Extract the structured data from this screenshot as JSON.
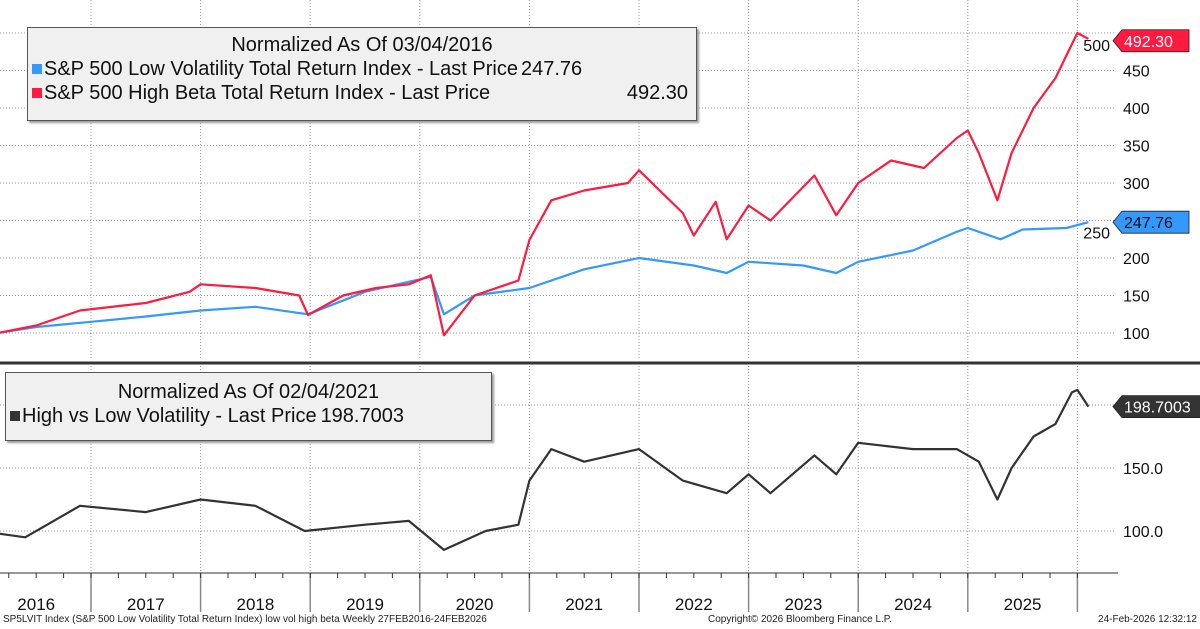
{
  "chart_data": [
    {
      "type": "line",
      "title": "Normalized As Of 03/04/2016",
      "ylim": [
        75,
        515
      ],
      "yticks": [
        100,
        150,
        200,
        250,
        300,
        350,
        400,
        450,
        500
      ],
      "series": [
        {
          "name": "S&P 500 Low Volatility Total Return Index - Last Price",
          "last": "247.76",
          "color": "#3399ff",
          "x": [
            2016.15,
            2016.5,
            2017.0,
            2017.5,
            2018.0,
            2018.5,
            2018.98,
            2019.5,
            2020.1,
            2020.22,
            2020.5,
            2021.0,
            2021.5,
            2022.0,
            2022.5,
            2022.8,
            2023.0,
            2023.5,
            2023.8,
            2024.0,
            2024.5,
            2024.9,
            2025.0,
            2025.3,
            2025.5,
            2025.9,
            2026.1
          ],
          "y": [
            100,
            108,
            115,
            122,
            130,
            135,
            125,
            155,
            175,
            125,
            150,
            160,
            185,
            200,
            190,
            180,
            195,
            190,
            180,
            195,
            210,
            235,
            240,
            225,
            238,
            240,
            247.76
          ]
        },
        {
          "name": "S&P 500 High Beta Total Return Index - Last Price",
          "last": "492.30",
          "color": "#ff1a40",
          "x": [
            2016.15,
            2016.5,
            2016.9,
            2017.5,
            2017.9,
            2018.0,
            2018.5,
            2018.9,
            2018.98,
            2019.3,
            2019.6,
            2019.9,
            2020.1,
            2020.22,
            2020.5,
            2020.9,
            2021.0,
            2021.2,
            2021.5,
            2021.9,
            2022.0,
            2022.4,
            2022.5,
            2022.7,
            2022.8,
            2023.0,
            2023.2,
            2023.6,
            2023.8,
            2024.0,
            2024.3,
            2024.6,
            2024.9,
            2025.0,
            2025.1,
            2025.27,
            2025.4,
            2025.6,
            2025.8,
            2025.9,
            2026.0,
            2026.1
          ],
          "y": [
            100,
            110,
            130,
            140,
            155,
            165,
            160,
            150,
            124,
            150,
            160,
            165,
            177,
            97,
            150,
            170,
            224,
            277,
            290,
            300,
            317,
            260,
            230,
            275,
            225,
            270,
            250,
            310,
            257,
            300,
            330,
            320,
            360,
            370,
            340,
            277,
            340,
            400,
            440,
            470,
            500,
            492.3
          ]
        }
      ]
    },
    {
      "type": "line",
      "title": "Normalized As Of 02/04/2021",
      "ylim": [
        70,
        235
      ],
      "yticks": [
        "100.0",
        "150.0"
      ],
      "series": [
        {
          "name": "High vs Low Volatility - Last Price",
          "last": "198.7003",
          "color": "#333333",
          "x": [
            2016.15,
            2016.4,
            2016.9,
            2017.5,
            2018.0,
            2018.5,
            2018.95,
            2019.5,
            2019.9,
            2020.22,
            2020.6,
            2020.9,
            2021.0,
            2021.2,
            2021.5,
            2022.0,
            2022.4,
            2022.6,
            2022.8,
            2023.0,
            2023.2,
            2023.6,
            2023.8,
            2024.0,
            2024.5,
            2024.9,
            2025.1,
            2025.27,
            2025.4,
            2025.6,
            2025.8,
            2025.95,
            2026.0,
            2026.1
          ],
          "y": [
            98,
            95,
            120,
            115,
            125,
            120,
            100,
            105,
            108,
            85,
            100,
            105,
            140,
            165,
            155,
            165,
            140,
            135,
            130,
            145,
            130,
            160,
            145,
            170,
            165,
            165,
            155,
            125,
            150,
            175,
            185,
            210,
            212,
            198.7003
          ]
        }
      ]
    }
  ],
  "xaxis": {
    "years": [
      "2016",
      "2017",
      "2018",
      "2019",
      "2020",
      "2021",
      "2022",
      "2023",
      "2024",
      "2025"
    ]
  },
  "footer": {
    "left": "SP5LVIT Index (S&P 500 Low Volatility Total Return Index) low vol high beta Weekly 27FEB2016-24FEB2026",
    "center": "Copyright© 2026 Bloomberg Finance L.P.",
    "right": "24-Feb-2026 12:32:12"
  }
}
